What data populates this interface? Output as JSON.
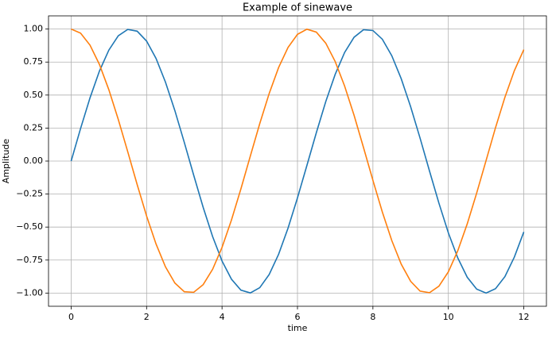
{
  "chart_data": {
    "type": "line",
    "title": "Example of sinewave",
    "x_label": "time",
    "y_label": "Amplitude",
    "x": [
      0,
      0.25,
      0.5,
      0.75,
      1,
      1.25,
      1.5,
      1.75,
      2,
      2.25,
      2.5,
      2.75,
      3,
      3.25,
      3.5,
      3.75,
      4,
      4.25,
      4.5,
      4.75,
      5,
      5.25,
      5.5,
      5.75,
      6,
      6.25,
      6.5,
      6.75,
      7,
      7.25,
      7.5,
      7.75,
      8,
      8.25,
      8.5,
      8.75,
      9,
      9.25,
      9.5,
      9.75,
      10,
      10.25,
      10.5,
      10.75,
      11,
      11.25,
      11.5,
      11.75,
      12
    ],
    "series": [
      {
        "color": "#1f77b4",
        "values": [
          0,
          0.247,
          0.479,
          0.682,
          0.841,
          0.949,
          0.997,
          0.984,
          0.909,
          0.778,
          0.598,
          0.382,
          0.141,
          -0.108,
          -0.351,
          -0.572,
          -0.757,
          -0.895,
          -0.978,
          -0.999,
          -0.959,
          -0.859,
          -0.706,
          -0.508,
          -0.279,
          -0.033,
          0.215,
          0.451,
          0.657,
          0.823,
          0.938,
          0.995,
          0.989,
          0.923,
          0.798,
          0.624,
          0.412,
          0.174,
          -0.075,
          -0.319,
          -0.544,
          -0.734,
          -0.88,
          -0.97,
          -1,
          -0.967,
          -0.875,
          -0.727,
          -0.537
        ]
      },
      {
        "color": "#ff7f0e",
        "values": [
          1,
          0.969,
          0.878,
          0.732,
          0.54,
          0.315,
          0.071,
          -0.178,
          -0.416,
          -0.628,
          -0.801,
          -0.924,
          -0.99,
          -0.994,
          -0.936,
          -0.82,
          -0.654,
          -0.446,
          -0.211,
          0.038,
          0.284,
          0.512,
          0.709,
          0.861,
          0.96,
          0.999,
          0.977,
          0.893,
          0.754,
          0.568,
          0.347,
          0.103,
          -0.146,
          -0.386,
          -0.602,
          -0.781,
          -0.911,
          -0.985,
          -0.997,
          -0.948,
          -0.839,
          -0.679,
          -0.476,
          -0.243,
          0.004,
          0.253,
          0.484,
          0.685,
          0.844
        ]
      }
    ],
    "xlim": [
      -0.6,
      12.6
    ],
    "xticks": [
      0,
      2,
      4,
      6,
      8,
      10,
      12
    ],
    "ylim": [
      -1.1,
      1.1
    ],
    "yticks": [
      {
        "value": -1,
        "label": "−1.00"
      },
      {
        "value": -0.75,
        "label": "−0.75"
      },
      {
        "value": -0.5,
        "label": "−0.50"
      },
      {
        "value": -0.25,
        "label": "−0.25"
      },
      {
        "value": 0,
        "label": "0.00"
      },
      {
        "value": 0.25,
        "label": "0.25"
      },
      {
        "value": 0.5,
        "label": "0.50"
      },
      {
        "value": 0.75,
        "label": "0.75"
      },
      {
        "value": 1,
        "label": "1.00"
      }
    ],
    "grid": true
  }
}
